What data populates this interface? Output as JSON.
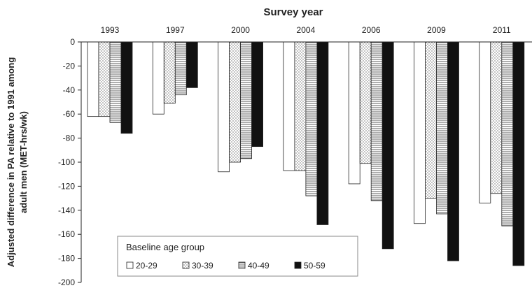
{
  "chart_data": {
    "type": "bar",
    "title": "Survey year",
    "ylabel_line1": "Adjusted difference in PA relative to 1991 among",
    "ylabel_line2": "adult men (MET-hrs/wk)",
    "categories": [
      "1993",
      "1997",
      "2000",
      "2004",
      "2006",
      "2009",
      "2011"
    ],
    "yticks": [
      "0",
      "-20",
      "-40",
      "-60",
      "-80",
      "-100",
      "-120",
      "-140",
      "-160",
      "-180",
      "-200"
    ],
    "ylim": [
      -200,
      0
    ],
    "legend_title": "Baseline age group",
    "legend_position": "bottom-left",
    "series": [
      {
        "name": "20-29",
        "pattern": "white",
        "values": [
          -62,
          -60,
          -108,
          -107,
          -118,
          -151,
          -134
        ]
      },
      {
        "name": "30-39",
        "pattern": "dotted",
        "values": [
          -62,
          -51,
          -100,
          -107,
          -101,
          -130,
          -126
        ]
      },
      {
        "name": "40-49",
        "pattern": "horizontal-lines",
        "values": [
          -67,
          -44,
          -97,
          -128,
          -132,
          -143,
          -153
        ]
      },
      {
        "name": "50-59",
        "pattern": "black",
        "values": [
          -76,
          -38,
          -87,
          -152,
          -172,
          -182,
          -186
        ]
      }
    ],
    "grid": false,
    "colors": {
      "stroke": "#222222",
      "black_fill": "#111111"
    }
  }
}
